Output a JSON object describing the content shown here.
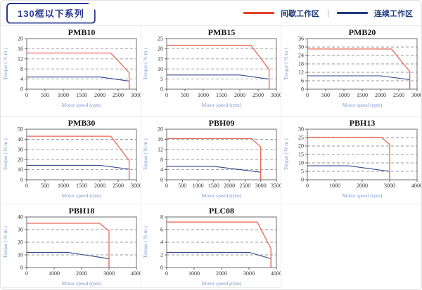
{
  "header": {
    "badge": "130框以下系列"
  },
  "legend": {
    "items": [
      {
        "label": "间歇工作区",
        "color": "#e0432a"
      },
      {
        "label": "连续工作区",
        "color": "#1e3a7c"
      }
    ],
    "separator": "|"
  },
  "colors": {
    "intermittent_line": "#e76a55",
    "continuous_line": "#32478c",
    "gridline": "#9a9a9a",
    "plot_frame": "#6e6e6e",
    "tick": "#444444"
  },
  "chart_data": [
    {
      "type": "line",
      "title": "PMB10",
      "xlabel": "Motor speed (rpm)",
      "ylabel": "Torque ( N·m )",
      "xticks": [
        0,
        500,
        1000,
        1500,
        2000,
        2500,
        3000
      ],
      "yticks": [
        0,
        4,
        8,
        12,
        16,
        20
      ],
      "xlim": [
        0,
        3000
      ],
      "ylim": [
        0,
        20
      ],
      "series": [
        {
          "name": "间歇工作区",
          "points": [
            [
              0,
              14.3
            ],
            [
              2300,
              14.3
            ],
            [
              2800,
              6.5
            ],
            [
              2800,
              0
            ]
          ]
        },
        {
          "name": "连续工作区",
          "points": [
            [
              0,
              4.8
            ],
            [
              2000,
              4.8
            ],
            [
              2800,
              3.2
            ],
            [
              2800,
              0
            ]
          ]
        }
      ]
    },
    {
      "type": "line",
      "title": "PMB15",
      "xlabel": "Motor speed (rpm)",
      "ylabel": "Torque ( N·m )",
      "xticks": [
        0,
        500,
        1000,
        1500,
        2000,
        2500,
        3000
      ],
      "yticks": [
        0,
        5,
        10,
        15,
        20,
        25
      ],
      "xlim": [
        0,
        3000
      ],
      "ylim": [
        0,
        25
      ],
      "series": [
        {
          "name": "间歇工作区",
          "points": [
            [
              0,
              21.7
            ],
            [
              2300,
              21.7
            ],
            [
              2800,
              9.8
            ],
            [
              2800,
              0
            ]
          ]
        },
        {
          "name": "连续工作区",
          "points": [
            [
              0,
              7
            ],
            [
              2000,
              7
            ],
            [
              2800,
              5
            ],
            [
              2800,
              0
            ]
          ]
        }
      ]
    },
    {
      "type": "line",
      "title": "PMB20",
      "xlabel": "Motor speed (rpm)",
      "ylabel": "Torque ( N·m )",
      "xticks": [
        0,
        500,
        1000,
        1500,
        2000,
        2500,
        3000
      ],
      "yticks": [
        0,
        6,
        12,
        18,
        24,
        30,
        36
      ],
      "xlim": [
        0,
        3000
      ],
      "ylim": [
        0,
        36
      ],
      "series": [
        {
          "name": "间歇工作区",
          "points": [
            [
              0,
              28.6
            ],
            [
              2300,
              28.6
            ],
            [
              2800,
              12.5
            ],
            [
              2800,
              0
            ]
          ]
        },
        {
          "name": "连续工作区",
          "points": [
            [
              0,
              9.5
            ],
            [
              2000,
              9.5
            ],
            [
              2800,
              6.8
            ],
            [
              2800,
              0
            ]
          ]
        }
      ]
    },
    {
      "type": "line",
      "title": "PMB30",
      "xlabel": "Motor speed (rpm)",
      "ylabel": "Torque ( N·m )",
      "xticks": [
        0,
        500,
        1000,
        1500,
        2000,
        2500,
        3000
      ],
      "yticks": [
        0,
        10,
        20,
        30,
        40,
        50
      ],
      "xlim": [
        0,
        3000
      ],
      "ylim": [
        0,
        50
      ],
      "series": [
        {
          "name": "间歇工作区",
          "points": [
            [
              0,
              43
            ],
            [
              2300,
              43
            ],
            [
              2800,
              19
            ],
            [
              2800,
              0
            ]
          ]
        },
        {
          "name": "连续工作区",
          "points": [
            [
              0,
              14.3
            ],
            [
              2000,
              14.3
            ],
            [
              2800,
              10.5
            ],
            [
              2800,
              0
            ]
          ]
        }
      ]
    },
    {
      "type": "line",
      "title": "PBH09",
      "xlabel": "Motor speed (rpm)",
      "ylabel": "Torque ( N·m )",
      "xticks": [
        0,
        500,
        1000,
        1500,
        2000,
        2500,
        3000,
        3500
      ],
      "yticks": [
        0,
        4,
        8,
        12,
        16,
        20
      ],
      "xlim": [
        0,
        3500
      ],
      "ylim": [
        0,
        20
      ],
      "series": [
        {
          "name": "间歇工作区",
          "points": [
            [
              0,
              16.3
            ],
            [
              2700,
              16.3
            ],
            [
              3000,
              13
            ],
            [
              3000,
              0
            ]
          ]
        },
        {
          "name": "连续工作区",
          "points": [
            [
              0,
              5.3
            ],
            [
              1500,
              5.3
            ],
            [
              3000,
              3
            ],
            [
              3000,
              0
            ]
          ]
        }
      ]
    },
    {
      "type": "line",
      "title": "PBH13",
      "xlabel": "Motor speed (rpm)",
      "ylabel": "Torque ( N·m )",
      "xticks": [
        0,
        1000,
        2000,
        3000,
        4000
      ],
      "yticks": [
        0,
        5,
        10,
        15,
        20,
        25,
        30
      ],
      "xlim": [
        0,
        4000
      ],
      "ylim": [
        0,
        30
      ],
      "series": [
        {
          "name": "间歇工作区",
          "points": [
            [
              0,
              25.2
            ],
            [
              2700,
              25.2
            ],
            [
              3000,
              21
            ],
            [
              3000,
              0
            ]
          ]
        },
        {
          "name": "连续工作区",
          "points": [
            [
              0,
              8.3
            ],
            [
              1500,
              8.3
            ],
            [
              3000,
              5
            ],
            [
              3000,
              0
            ]
          ]
        }
      ]
    },
    {
      "type": "line",
      "title": "PBH18",
      "xlabel": "Motor speed (rpm)",
      "ylabel": "Torque ( N·m )",
      "xticks": [
        0,
        1000,
        2000,
        3000,
        4000
      ],
      "yticks": [
        0,
        10,
        20,
        30,
        40
      ],
      "xlim": [
        0,
        4000
      ],
      "ylim": [
        0,
        40
      ],
      "series": [
        {
          "name": "间歇工作区",
          "points": [
            [
              0,
              35
            ],
            [
              2650,
              35
            ],
            [
              3000,
              29
            ],
            [
              3000,
              0
            ]
          ]
        },
        {
          "name": "连续工作区",
          "points": [
            [
              0,
              12
            ],
            [
              1500,
              12
            ],
            [
              3000,
              7
            ],
            [
              3000,
              0
            ]
          ]
        }
      ]
    },
    {
      "type": "line",
      "title": "PLC08",
      "xlabel": "Motor speed (rpm)",
      "ylabel": "Torque ( N·m )",
      "xticks": [
        0,
        1000,
        2000,
        3000,
        4000
      ],
      "yticks": [
        0,
        2,
        4,
        6,
        8
      ],
      "xlim": [
        0,
        4000
      ],
      "ylim": [
        0,
        8
      ],
      "series": [
        {
          "name": "间歇工作区",
          "points": [
            [
              0,
              7.2
            ],
            [
              3300,
              7.2
            ],
            [
              3800,
              3
            ],
            [
              3800,
              0
            ]
          ]
        },
        {
          "name": "连续工作区",
          "points": [
            [
              0,
              2.4
            ],
            [
              3000,
              2.4
            ],
            [
              3800,
              1.4
            ],
            [
              3800,
              0
            ]
          ]
        }
      ]
    }
  ]
}
